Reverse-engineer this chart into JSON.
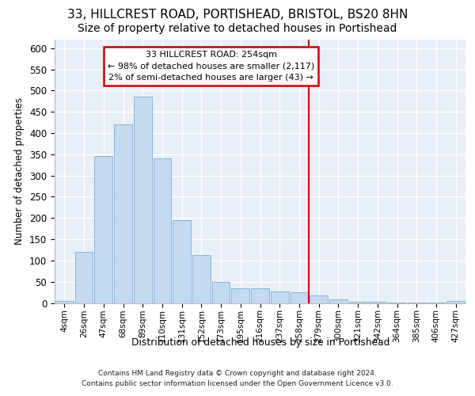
{
  "title1": "33, HILLCREST ROAD, PORTISHEAD, BRISTOL, BS20 8HN",
  "title2": "Size of property relative to detached houses in Portishead",
  "xlabel": "Distribution of detached houses by size in Portishead",
  "ylabel": "Number of detached properties",
  "categories": [
    "4sqm",
    "26sqm",
    "47sqm",
    "68sqm",
    "89sqm",
    "110sqm",
    "131sqm",
    "152sqm",
    "173sqm",
    "195sqm",
    "216sqm",
    "237sqm",
    "258sqm",
    "279sqm",
    "300sqm",
    "321sqm",
    "342sqm",
    "364sqm",
    "385sqm",
    "406sqm",
    "427sqm"
  ],
  "values": [
    5,
    120,
    345,
    420,
    485,
    340,
    195,
    112,
    50,
    35,
    35,
    27,
    25,
    18,
    8,
    2,
    2,
    1,
    1,
    1,
    5
  ],
  "bar_color": "#c5d9f0",
  "bar_edge_color": "#7bafd4",
  "vline_color": "#cc0000",
  "vline_index": 12,
  "annotation_text": "33 HILLCREST ROAD: 254sqm\n← 98% of detached houses are smaller (2,117)\n2% of semi-detached houses are larger (43) →",
  "annotation_box_edgecolor": "#cc0000",
  "footnote1": "Contains HM Land Registry data © Crown copyright and database right 2024.",
  "footnote2": "Contains public sector information licensed under the Open Government Licence v3.0.",
  "ylim": [
    0,
    620
  ],
  "yticks": [
    0,
    50,
    100,
    150,
    200,
    250,
    300,
    350,
    400,
    450,
    500,
    550,
    600
  ],
  "bg_color": "#e8eff9",
  "grid_color": "#ffffff",
  "title1_fontsize": 11,
  "title2_fontsize": 10
}
